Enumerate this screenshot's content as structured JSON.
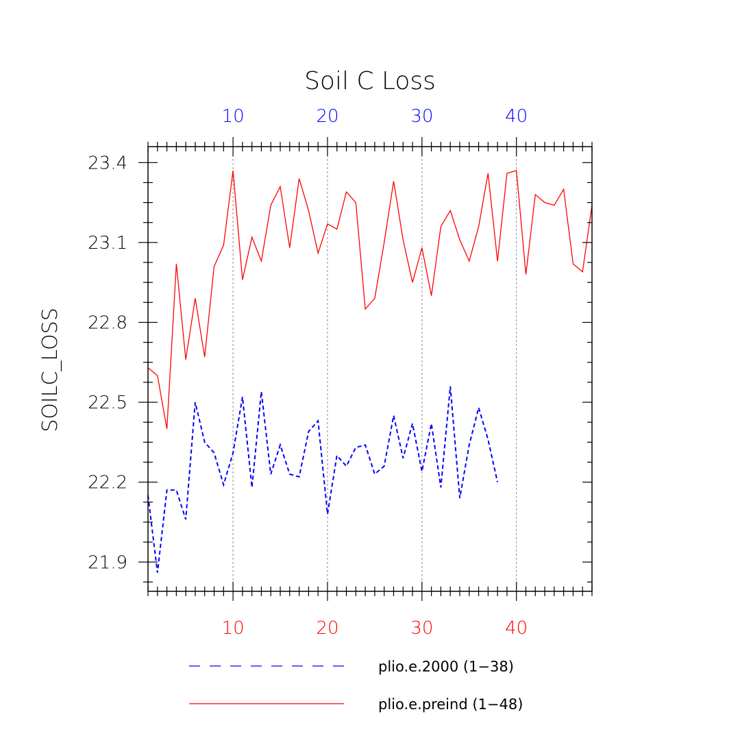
{
  "chart_data": {
    "type": "line",
    "title": "Soil C Loss",
    "ylabel": "SOILC_LOSS",
    "xlabel": "",
    "xlim": [
      1,
      48
    ],
    "ylim": [
      21.79,
      23.46
    ],
    "y_ticks": [
      "21.9",
      "22.2",
      "22.5",
      "22.8",
      "23.1",
      "23.4"
    ],
    "bottom_x_ticks": [
      "10",
      "20",
      "30",
      "40"
    ],
    "top_x_ticks": [
      "10",
      "20",
      "30",
      "40"
    ],
    "grid": "vertical dashed at x = 10, 20, 30, 40",
    "legend_position": "bottom",
    "series": [
      {
        "name": "plio.e.2000 (1−38)",
        "color": "#0000ff",
        "style": "dashed",
        "x": [
          1,
          2,
          3,
          4,
          5,
          6,
          7,
          8,
          9,
          10,
          11,
          12,
          13,
          14,
          15,
          16,
          17,
          18,
          19,
          20,
          21,
          22,
          23,
          24,
          25,
          26,
          27,
          28,
          29,
          30,
          31,
          32,
          33,
          34,
          35,
          36,
          37,
          38
        ],
        "values": [
          22.15,
          21.86,
          22.17,
          22.17,
          22.06,
          22.5,
          22.35,
          22.31,
          22.19,
          22.31,
          22.52,
          22.18,
          22.54,
          22.23,
          22.34,
          22.23,
          22.22,
          22.39,
          22.43,
          22.08,
          22.3,
          22.26,
          22.33,
          22.34,
          22.23,
          22.26,
          22.45,
          22.29,
          22.42,
          22.24,
          22.42,
          22.18,
          22.56,
          22.14,
          22.34,
          22.48,
          22.36,
          22.2
        ]
      },
      {
        "name": "plio.e.preind (1−48)",
        "color": "#ff0000",
        "style": "solid",
        "x": [
          1,
          2,
          3,
          4,
          5,
          6,
          7,
          8,
          9,
          10,
          11,
          12,
          13,
          14,
          15,
          16,
          17,
          18,
          19,
          20,
          21,
          22,
          23,
          24,
          25,
          26,
          27,
          28,
          29,
          30,
          31,
          32,
          33,
          34,
          35,
          36,
          37,
          38,
          39,
          40,
          41,
          42,
          43,
          44,
          45,
          46,
          47,
          48
        ],
        "values": [
          22.63,
          22.6,
          22.4,
          23.02,
          22.66,
          22.89,
          22.67,
          23.01,
          23.09,
          23.37,
          22.96,
          23.12,
          23.03,
          23.24,
          23.31,
          23.08,
          23.34,
          23.22,
          23.06,
          23.17,
          23.15,
          23.29,
          23.25,
          22.85,
          22.89,
          23.1,
          23.33,
          23.11,
          22.95,
          23.08,
          22.9,
          23.16,
          23.22,
          23.11,
          23.03,
          23.16,
          23.36,
          23.03,
          23.36,
          23.37,
          22.98,
          23.28,
          23.25,
          23.24,
          23.3,
          23.02,
          22.99,
          23.24
        ]
      }
    ]
  }
}
